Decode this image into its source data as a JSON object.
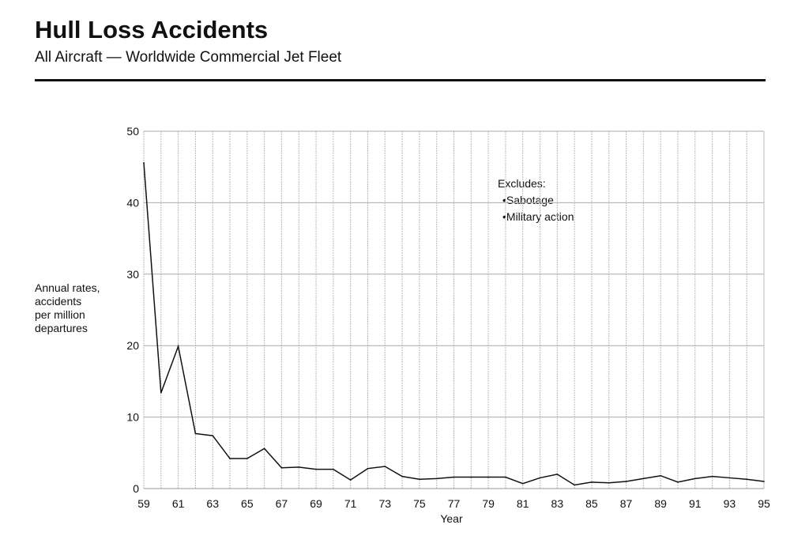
{
  "chart_data": {
    "type": "line",
    "title": "Hull Loss Accidents",
    "subtitle": "All Aircraft — Worldwide Commercial Jet Fleet",
    "xlabel": "Year",
    "ylabel_lines": [
      "Annual rates,",
      "accidents",
      "per million",
      "departures"
    ],
    "ylim": [
      0,
      50
    ],
    "xlim": [
      59,
      95
    ],
    "yticks": [
      0,
      10,
      20,
      30,
      40,
      50
    ],
    "xticks": [
      "59",
      "61",
      "63",
      "65",
      "67",
      "69",
      "71",
      "73",
      "75",
      "77",
      "79",
      "81",
      "83",
      "85",
      "87",
      "89",
      "91",
      "93",
      "95"
    ],
    "grid": true,
    "legend": {
      "heading": "Excludes:",
      "items": [
        "Sabotage",
        "Military action"
      ],
      "placement": "top-right"
    },
    "x": [
      59,
      60,
      61,
      62,
      63,
      64,
      65,
      66,
      67,
      68,
      69,
      70,
      71,
      72,
      73,
      74,
      75,
      76,
      77,
      78,
      79,
      80,
      81,
      82,
      83,
      84,
      85,
      86,
      87,
      88,
      89,
      90,
      91,
      92,
      93,
      94,
      95
    ],
    "series": [
      {
        "name": "Hull loss rate",
        "values": [
          45.6,
          13.4,
          19.9,
          7.7,
          7.4,
          4.2,
          4.2,
          5.6,
          2.9,
          3.0,
          2.7,
          2.7,
          1.2,
          2.8,
          3.1,
          1.7,
          1.3,
          1.4,
          1.6,
          1.6,
          1.6,
          1.6,
          0.7,
          1.5,
          2.0,
          0.5,
          0.9,
          0.8,
          1.0,
          1.4,
          1.8,
          0.9,
          1.4,
          1.7,
          1.5,
          1.3,
          1.0
        ]
      }
    ]
  }
}
